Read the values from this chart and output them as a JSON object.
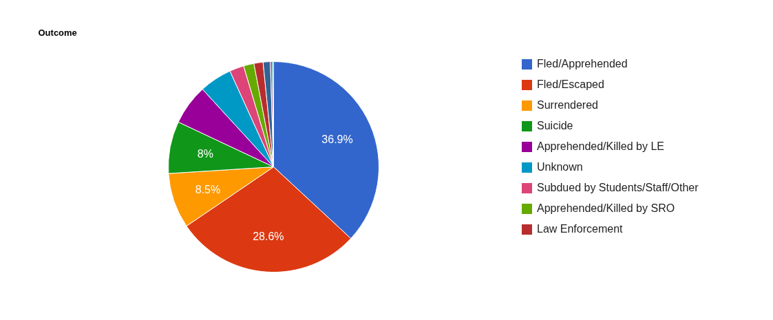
{
  "chart_data": {
    "type": "pie",
    "title": "Outcome",
    "categories": [
      "Fled/Apprehended",
      "Fled/Escaped",
      "Surrendered",
      "Suicide",
      "Apprehended/Killed by LE",
      "Unknown",
      "Subdued by Students/Staff/Other",
      "Apprehended/Killed by SRO",
      "Law Enforcement",
      null,
      null,
      null
    ],
    "values": [
      36.9,
      28.6,
      8.5,
      8,
      6.2,
      5.0,
      2.2,
      1.6,
      1.4,
      1.1,
      0.3,
      0.2
    ],
    "colors": [
      "#3366cc",
      "#dc3912",
      "#ff9900",
      "#109618",
      "#990099",
      "#0099c6",
      "#dd4477",
      "#66aa00",
      "#b82e2e",
      "#316395",
      "#994499",
      "#22aa99"
    ],
    "value_labels": [
      "36.9%",
      "28.6%",
      "8.5%",
      "8%",
      null,
      null,
      null,
      null,
      null,
      null,
      null,
      null
    ],
    "legend": "right"
  }
}
